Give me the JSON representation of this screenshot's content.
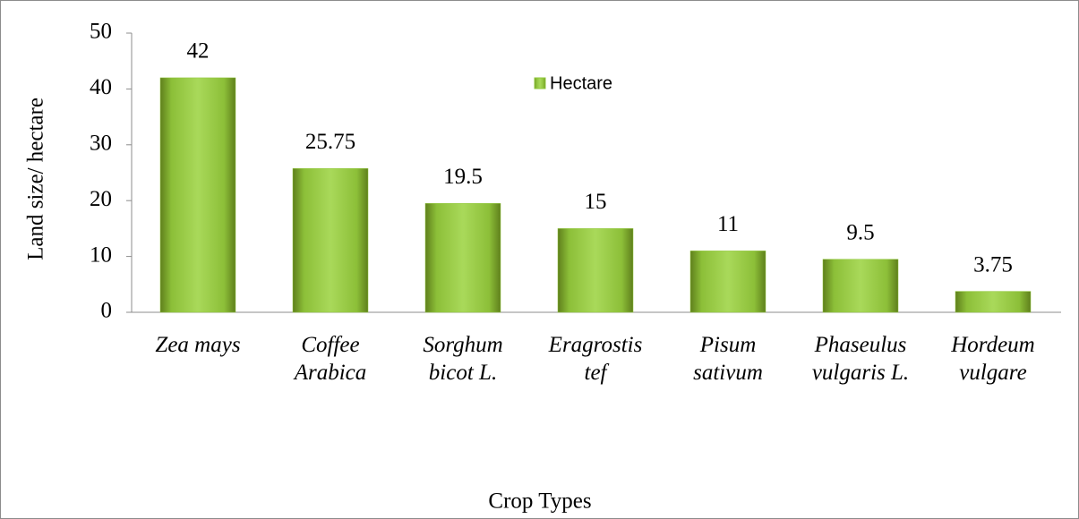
{
  "chart_data": {
    "type": "bar",
    "x_label": "Crop Types",
    "y_label": "Land size/ hectare",
    "categories": [
      "Zea mays",
      "Coffee Arabica",
      "Sorghum bicot L.",
      "Eragrostis tef",
      "Pisum sativum",
      "Phaseulus vulgaris L.",
      "Hordeum vulgare"
    ],
    "series": [
      {
        "name": "Hectare",
        "color": "#92c83e",
        "values": [
          42,
          25.75,
          19.5,
          15,
          11,
          9.5,
          3.75
        ]
      }
    ],
    "ylim": [
      0,
      50
    ],
    "yticks": [
      0,
      10,
      20,
      30,
      40,
      50
    ]
  }
}
